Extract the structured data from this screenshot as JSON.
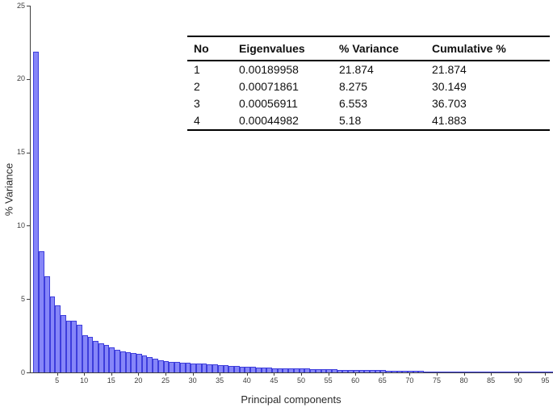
{
  "chart_data": {
    "type": "bar",
    "title": "",
    "xlabel": "Principal components",
    "ylabel": "% Variance",
    "xlim": [
      0,
      96.5
    ],
    "ylim": [
      0,
      25
    ],
    "yticks": [
      0,
      5,
      10,
      15,
      20,
      25
    ],
    "xticks": [
      5,
      10,
      15,
      20,
      25,
      30,
      35,
      40,
      45,
      50,
      55,
      60,
      65,
      70,
      75,
      80,
      85,
      90,
      95
    ],
    "grid": false,
    "legend": "none",
    "x_start": 1,
    "categories_note": "principal component index 1..96",
    "values": [
      21.874,
      8.275,
      6.553,
      5.18,
      4.55,
      3.9,
      3.55,
      3.5,
      3.25,
      2.55,
      2.4,
      2.15,
      2.0,
      1.85,
      1.72,
      1.55,
      1.45,
      1.4,
      1.33,
      1.25,
      1.17,
      1.05,
      0.95,
      0.85,
      0.78,
      0.74,
      0.71,
      0.68,
      0.66,
      0.62,
      0.6,
      0.59,
      0.54,
      0.53,
      0.5,
      0.48,
      0.46,
      0.44,
      0.41,
      0.38,
      0.36,
      0.34,
      0.32,
      0.31,
      0.3,
      0.29,
      0.28,
      0.27,
      0.26,
      0.26,
      0.25,
      0.24,
      0.23,
      0.22,
      0.21,
      0.2,
      0.19,
      0.18,
      0.17,
      0.17,
      0.16,
      0.16,
      0.15,
      0.15,
      0.14,
      0.13,
      0.12,
      0.11,
      0.1,
      0.1,
      0.09,
      0.09,
      0.08,
      0.07,
      0.05,
      0.05,
      0.05,
      0.04,
      0.04,
      0.04,
      0.04,
      0.04,
      0.04,
      0.03,
      0.03,
      0.03,
      0.03,
      0.03,
      0.03,
      0.02,
      0.02,
      0.02,
      0.02,
      0.02,
      0.02,
      0.02
    ],
    "bar_fill": "#8686f8",
    "bar_border": "#3d3ddc",
    "axis_color": "#3f3f3f"
  },
  "table": {
    "headers": [
      "No",
      "Eigenvalues",
      "% Variance",
      "Cumulative %"
    ],
    "rows": [
      [
        "1",
        "0.00189958",
        "21.874",
        "21.874"
      ],
      [
        "2",
        "0.00071861",
        "8.275",
        "30.149"
      ],
      [
        "3",
        "0.00056911",
        "6.553",
        "36.703"
      ],
      [
        "4",
        "0.00044982",
        "5.18",
        "41.883"
      ]
    ]
  }
}
